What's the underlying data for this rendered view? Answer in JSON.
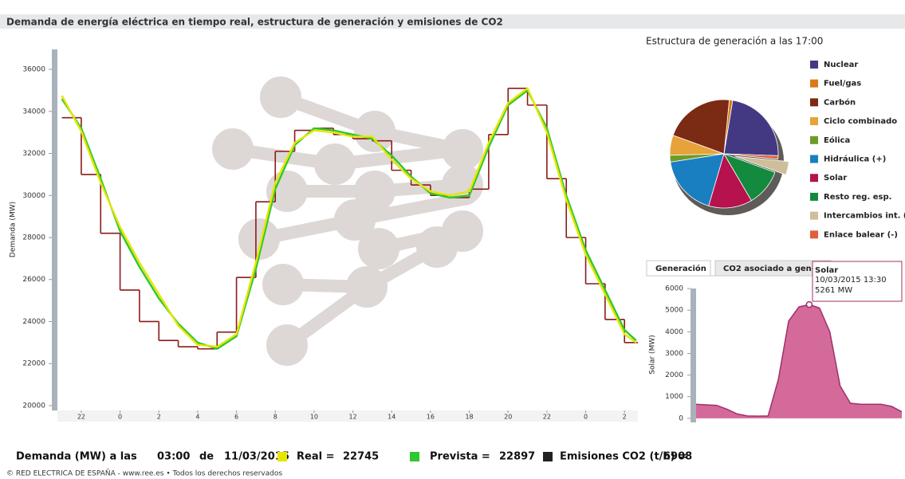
{
  "chart_data": [
    {
      "type": "line",
      "title": "Demanda de energía eléctrica en tiempo real, estructura de generación y emisiones de CO2",
      "y_label": "Demanda (MW)",
      "x": [
        21,
        22,
        23,
        24,
        25,
        26,
        27,
        28,
        29,
        30,
        31,
        32,
        33,
        34,
        35,
        36,
        37,
        38,
        39,
        40,
        41,
        42,
        43,
        44,
        45,
        46,
        47,
        48,
        49,
        50,
        50.6
      ],
      "xlim": [
        20.77,
        50.69
      ],
      "xticks": [
        {
          "value": 22,
          "label": "22"
        },
        {
          "value": 24,
          "label": "0"
        },
        {
          "value": 26,
          "label": "2"
        },
        {
          "value": 28,
          "label": "4"
        },
        {
          "value": 30,
          "label": "6"
        },
        {
          "value": 32,
          "label": "8"
        },
        {
          "value": 34,
          "label": "10"
        },
        {
          "value": 36,
          "label": "12"
        },
        {
          "value": 38,
          "label": "14"
        },
        {
          "value": 40,
          "label": "16"
        },
        {
          "value": 42,
          "label": "18"
        },
        {
          "value": 44,
          "label": "20"
        },
        {
          "value": 46,
          "label": "22"
        },
        {
          "value": 48,
          "label": "0"
        },
        {
          "value": 50,
          "label": "2"
        }
      ],
      "ylim": [
        19770,
        36950
      ],
      "yticks": [
        20000,
        22000,
        24000,
        26000,
        28000,
        30000,
        32000,
        34000,
        36000
      ],
      "series": [
        {
          "color": "#8b1a1a",
          "step": true,
          "values": [
            33700,
            31000,
            28200,
            25500,
            24000,
            23100,
            22800,
            22700,
            23500,
            26100,
            29700,
            32100,
            33100,
            33200,
            32900,
            32700,
            32600,
            31200,
            30500,
            30000,
            29900,
            30300,
            32900,
            35100,
            34300,
            30800,
            28000,
            25800,
            24100,
            23000,
            23000
          ]
        },
        {
          "color": "#2ec72e",
          "values": [
            34600,
            33200,
            30800,
            28300,
            26600,
            25100,
            23900,
            23000,
            22700,
            23300,
            26500,
            30300,
            32400,
            33200,
            33100,
            32900,
            32700,
            31900,
            30900,
            30100,
            29900,
            30000,
            32300,
            34300,
            35000,
            33200,
            30000,
            27400,
            25500,
            23600,
            23100
          ]
        },
        {
          "color": "#e6e600",
          "values": [
            34750,
            33050,
            30600,
            28500,
            26800,
            25300,
            23800,
            22900,
            22800,
            23400,
            26800,
            30600,
            32500,
            33100,
            33000,
            32800,
            32800,
            31700,
            30800,
            30200,
            30000,
            30200,
            32500,
            34400,
            35100,
            33000,
            29800,
            27200,
            25300,
            23400,
            23000
          ]
        }
      ]
    },
    {
      "type": "pie",
      "title": "Estructura de generación a las 17:00",
      "categories": [
        "Nuclear",
        "Fuel/gas",
        "Carbón",
        "Ciclo combinado",
        "Eólica",
        "Hidráulica (+)",
        "Solar",
        "Resto reg. esp.",
        "Intercambios int. (-)",
        "Enlace balear (-)"
      ],
      "values": [
        23,
        1,
        21,
        6,
        2,
        18,
        13,
        11,
        4,
        1
      ],
      "colors": [
        "#433983",
        "#d97a1a",
        "#7b2a14",
        "#e8a23a",
        "#6f9a2a",
        "#1a7fc1",
        "#b5124e",
        "#138a3e",
        "#cdbf9a",
        "#e0603a"
      ],
      "explode": [
        false,
        false,
        false,
        false,
        false,
        false,
        false,
        false,
        true,
        false
      ]
    },
    {
      "type": "area",
      "y_label": "Solar (MW)",
      "color": "#d36a9a",
      "line_color": "#a0306a",
      "values": [
        650,
        620,
        600,
        420,
        200,
        110,
        100,
        110,
        1800,
        4500,
        5150,
        5261,
        5100,
        4000,
        1500,
        700,
        650,
        650,
        650,
        550,
        300
      ],
      "ylim": [
        -190,
        6260
      ],
      "yticks": [
        0,
        1000,
        2000,
        3000,
        4000,
        5000,
        6000
      ],
      "tooltip": {
        "series": "Solar",
        "date": "10/03/2015 13:30",
        "value": "5261 MW"
      }
    }
  ],
  "tabs": [
    "Generación",
    "CO2 asociado a generación"
  ],
  "readout": {
    "label": "Demanda (MW) a las",
    "time": "03:00",
    "of": "de",
    "date": "11/03/2015",
    "items": [
      {
        "label": "Real =",
        "value": 22745,
        "color": "#e6e600"
      },
      {
        "label": "Prevista =",
        "value": 22897,
        "color": "#2ec72e"
      },
      {
        "label": "Emisiones CO2 (t/h) =",
        "value": 6908,
        "color": "#222222"
      }
    ]
  },
  "footer": "© RED ELECTRICA DE ESPAÑA - www.ree.es • Todos los derechos reservados"
}
